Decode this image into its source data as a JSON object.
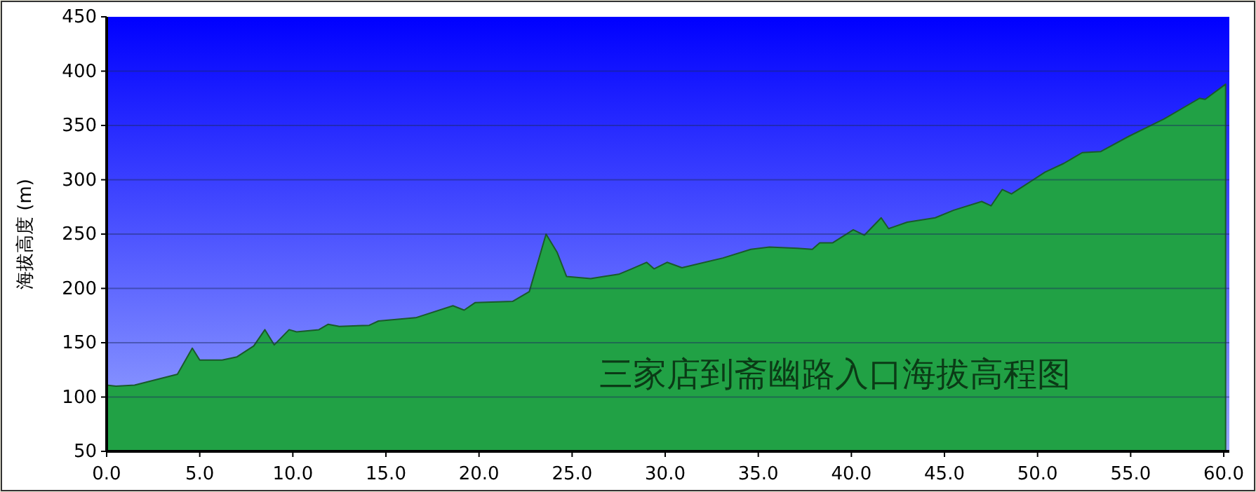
{
  "chart_data": {
    "type": "area",
    "ylabel": "海拔高度 (m)",
    "annotations": [
      "三家店到斋幽路入口海拔高程图"
    ],
    "x": [
      0,
      0.5,
      1.5,
      3.8,
      4.6,
      5.0,
      6.2,
      7.0,
      7.9,
      8.5,
      9.0,
      9.8,
      10.2,
      11.4,
      11.9,
      12.5,
      14.1,
      14.6,
      16.6,
      18.6,
      19.2,
      19.8,
      21.8,
      22.7,
      23.6,
      24.2,
      24.7,
      26.0,
      26.7,
      27.5,
      28.2,
      29.0,
      29.4,
      30.1,
      30.9,
      33.1,
      34.6,
      35.6,
      37.1,
      37.9,
      38.3,
      39.0,
      40.1,
      40.7,
      41.6,
      42.0,
      43.0,
      44.5,
      45.5,
      47.0,
      47.5,
      48.1,
      48.6,
      50.4,
      51.4,
      52.4,
      53.4,
      54.9,
      56.8,
      58.7,
      59.0,
      60.1
    ],
    "series": [
      {
        "color": "#21a145",
        "values": [
          111,
          110,
          111,
          121,
          145,
          134,
          134,
          137,
          147,
          162,
          148,
          162,
          160,
          162,
          167,
          165,
          166,
          170,
          173,
          184,
          180,
          187,
          188,
          197,
          250,
          233,
          211,
          209,
          211,
          213,
          218,
          224,
          218,
          224,
          219,
          228,
          236,
          238,
          237,
          236,
          242,
          242,
          254,
          249,
          265,
          255,
          261,
          265,
          272,
          280,
          276,
          291,
          287,
          307,
          315,
          325,
          326,
          340,
          356,
          375,
          374,
          388
        ]
      }
    ],
    "xlim": [
      0,
      60.3
    ],
    "xticks": [
      {
        "value": 0,
        "label": "0.0"
      },
      {
        "value": 5,
        "label": "5.0"
      },
      {
        "value": 10,
        "label": "10.0"
      },
      {
        "value": 15,
        "label": "15.0"
      },
      {
        "value": 20,
        "label": "20.0"
      },
      {
        "value": 25,
        "label": "25.0"
      },
      {
        "value": 30,
        "label": "30.0"
      },
      {
        "value": 35,
        "label": "35.0"
      },
      {
        "value": 40,
        "label": "40.0"
      },
      {
        "value": 45,
        "label": "45.0"
      },
      {
        "value": 50,
        "label": "50.0"
      },
      {
        "value": 55,
        "label": "55.0"
      },
      {
        "value": 60,
        "label": "60.0"
      }
    ],
    "ylim": [
      50,
      450
    ],
    "yticks": [
      50,
      100,
      150,
      200,
      250,
      300,
      350,
      400,
      450
    ],
    "grid": "y"
  }
}
